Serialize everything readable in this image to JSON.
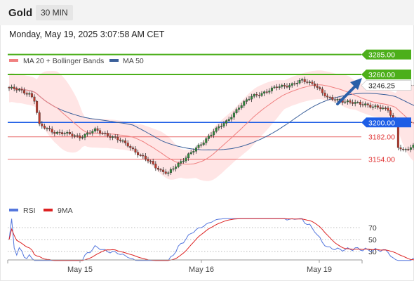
{
  "header": {
    "symbol": "Gold",
    "timeframe": "30 MIN"
  },
  "datetime": "Monday, May 19, 2025 3:07:58 AM CET",
  "chart_data": [
    {
      "type": "candlestick",
      "legend": [
        {
          "name": "MA 20 + Bollinger Bands",
          "color": "#f08080"
        },
        {
          "name": "MA 50",
          "color": "#3a5f9a"
        }
      ],
      "ylim": [
        3100,
        3300
      ],
      "levels": [
        {
          "value": 3285.0,
          "label": "3285.00",
          "color": "#4caf1a",
          "style": "badge"
        },
        {
          "value": 3260.0,
          "label": "3260.00",
          "color": "#4caf1a",
          "style": "badge"
        },
        {
          "value": 3246.25,
          "label": "3246.25",
          "color": "#222222",
          "style": "price"
        },
        {
          "value": 3200.0,
          "label": "3200.00",
          "color": "#1e5ee6",
          "style": "badge"
        },
        {
          "value": 3182.0,
          "label": "3182.00",
          "color": "#e03030",
          "style": "text"
        },
        {
          "value": 3154.0,
          "label": "3154.00",
          "color": "#e03030",
          "style": "text"
        }
      ],
      "colors": {
        "up": "#2e8b3a",
        "down": "#c0392b",
        "ma20": "#f08080",
        "ma50": "#3a5f9a",
        "band": "#ffdcdc",
        "arrow": "#2a5fa8"
      },
      "x_labels": [
        "May 15",
        "May 16",
        "May 19"
      ]
    },
    {
      "type": "line",
      "legend": [
        {
          "name": "RSI",
          "color": "#5577dd"
        },
        {
          "name": "9MA",
          "color": "#dd2222"
        }
      ],
      "ylim": [
        0,
        100
      ],
      "levels": [
        70,
        50,
        30
      ]
    }
  ]
}
